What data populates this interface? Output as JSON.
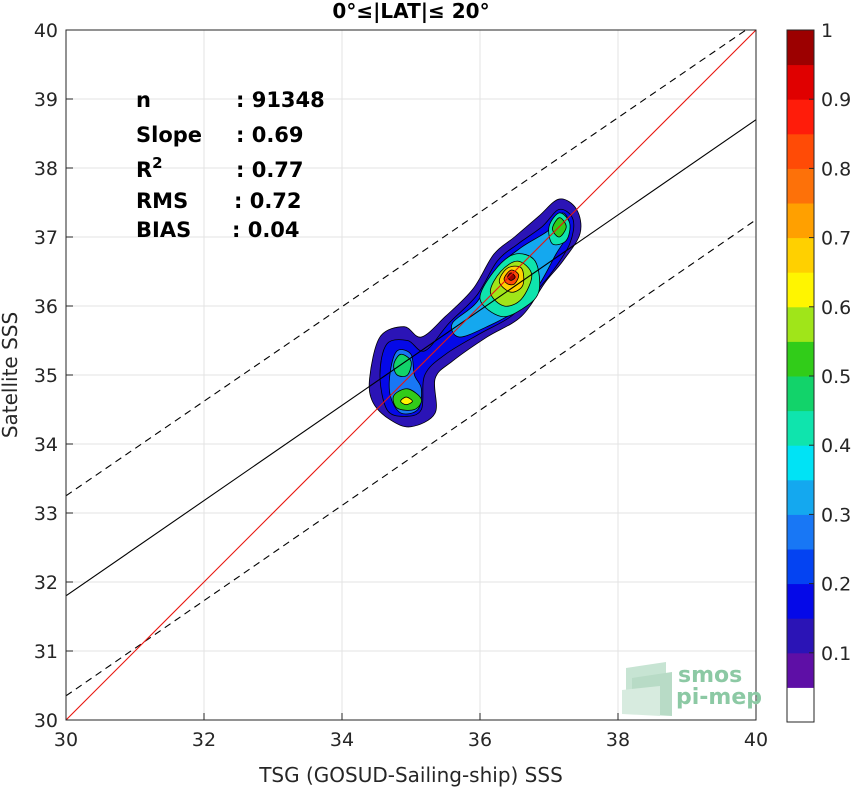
{
  "chart_data": {
    "type": "heatmap",
    "title": "0°≤|LAT|≤ 20°",
    "xlabel": "TSG (GOSUD-Sailing-ship) SSS",
    "ylabel": "Satellite SSS",
    "xlim": [
      30,
      40
    ],
    "ylim": [
      30,
      40
    ],
    "xticks": [
      "30",
      "32",
      "34",
      "36",
      "38",
      "40"
    ],
    "yticks": [
      "30",
      "31",
      "32",
      "33",
      "34",
      "35",
      "36",
      "37",
      "38",
      "39",
      "40"
    ],
    "grid": true,
    "stats": [
      {
        "label": "n",
        "value": ": 91348"
      },
      {
        "label": "Slope",
        "value": ": 0.69"
      },
      {
        "label": "R",
        "sup": "2",
        "value": ": 0.77"
      },
      {
        "label": "RMS",
        "value": ": 0.72"
      },
      {
        "label": "BIAS",
        "value": ": 0.04"
      }
    ],
    "lines": {
      "identity": {
        "x": [
          30,
          40
        ],
        "y": [
          30,
          40
        ],
        "color": "#e8160f"
      },
      "regression": {
        "x": [
          30,
          40
        ],
        "y": [
          31.8,
          38.7
        ],
        "color": "#000000"
      },
      "upper_bound": {
        "x": [
          30,
          40
        ],
        "y": [
          33.25,
          40.1
        ],
        "color": "#000000"
      },
      "lower_bound": {
        "x": [
          30,
          40
        ],
        "y": [
          30.35,
          37.25
        ],
        "color": "#000000"
      }
    },
    "density_peaks": [
      {
        "x": 36.45,
        "y": 36.42,
        "level": 1.0
      },
      {
        "x": 34.93,
        "y": 34.63,
        "level": 0.55
      },
      {
        "x": 34.85,
        "y": 35.15,
        "level": 0.45
      },
      {
        "x": 37.15,
        "y": 37.15,
        "level": 0.4
      }
    ],
    "colorbar": {
      "ticks": [
        "0.1",
        "0.2",
        "0.3",
        "0.4",
        "0.5",
        "0.6",
        "0.7",
        "0.8",
        "0.9",
        "1"
      ],
      "colors": [
        "#ffffff",
        "#5e0fa6",
        "#2b14b6",
        "#0509e8",
        "#0443f2",
        "#1877f5",
        "#14a8ef",
        "#00e3f5",
        "#0fe4ad",
        "#12d36a",
        "#31cc19",
        "#a0e519",
        "#fff500",
        "#ffd000",
        "#ffa000",
        "#fd7109",
        "#ff4b06",
        "#ff1c0a",
        "#e00000",
        "#9c0000"
      ]
    }
  },
  "logo": {
    "line1": "smos",
    "line2": "pi-mep"
  }
}
